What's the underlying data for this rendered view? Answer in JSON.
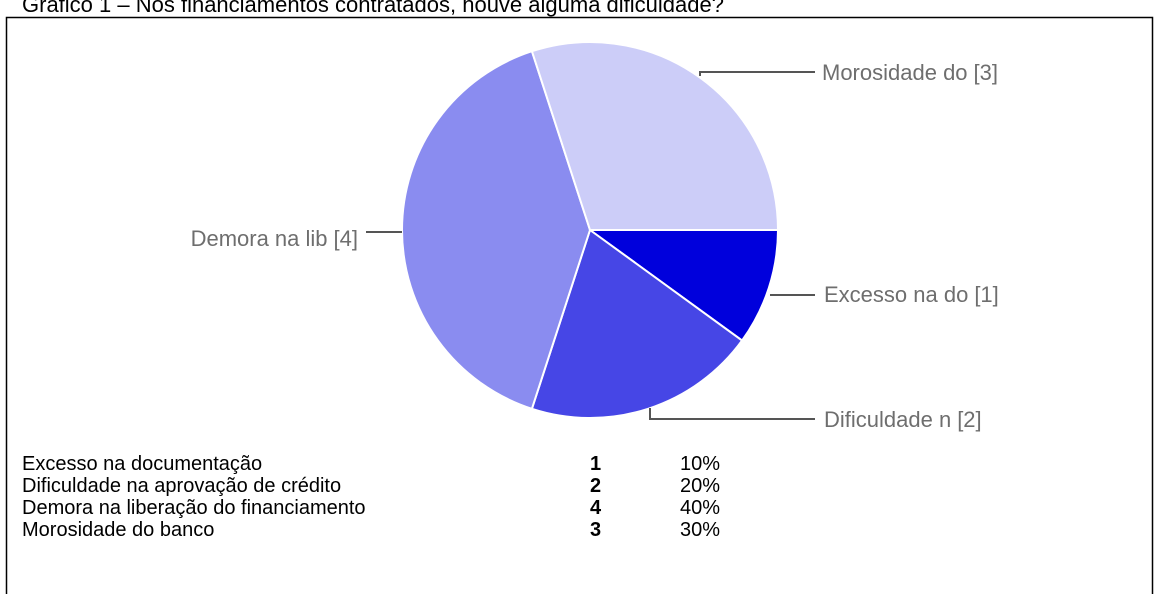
{
  "chart_data": {
    "type": "pie",
    "title": "Gráfico 1 – Nos financiamentos contratados, houve alguma dificuldade?",
    "categories": [
      "Excesso na documentação",
      "Dificuldade na aprovação de crédito",
      "Demora na liberação do financiamento",
      "Morosidade do banco"
    ],
    "short_labels": [
      "Excesso na do",
      "Dificuldade n",
      "Demora na lib",
      "Morosidade do"
    ],
    "values": [
      1,
      2,
      4,
      3
    ],
    "value_labels": [
      "[1]",
      "[2]",
      "[4]",
      "[3]"
    ],
    "percentages": [
      "10%",
      "20%",
      "40%",
      "30%"
    ],
    "colors": [
      "#0000dc",
      "#4646e6",
      "#8a8cf0",
      "#cccdf8"
    ]
  }
}
